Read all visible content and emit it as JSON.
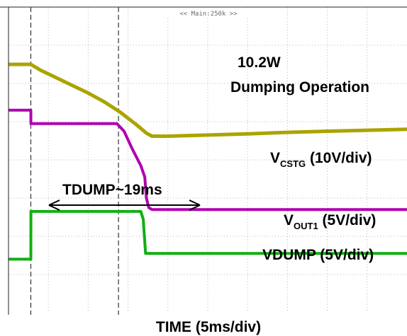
{
  "chart_data": {
    "type": "line",
    "header_text": "<< Main:250k >>",
    "annotations": {
      "power": "10.2W",
      "mode": "Dumping Operation",
      "interval": "TDUMP~19ms"
    },
    "xlabel": "TIME (5ms/div)",
    "x_divisions": 10,
    "x_per_div_ms": 5,
    "cursors_ms": [
      2.8,
      13.8
    ],
    "series": [
      {
        "name": "VCSTG (10V/div)",
        "label_main": "V",
        "label_sub": "CSTG",
        "label_tail": " (10V/div)",
        "color": "#aaa400",
        "x_ms": [
          0,
          2.8,
          4,
          6,
          8,
          10,
          12,
          14,
          16,
          17.3,
          18,
          20,
          25,
          30,
          35,
          40,
          50
        ],
        "y_div": [
          6.5,
          6.5,
          6.35,
          6.15,
          5.95,
          5.75,
          5.52,
          5.25,
          4.93,
          4.7,
          4.62,
          4.62,
          4.65,
          4.68,
          4.72,
          4.75,
          4.8
        ]
      },
      {
        "name": "VOUT1 (5V/div)",
        "label_main": "V",
        "label_sub": "OUT1",
        "label_tail": " (5V/div)",
        "color": "#b000b0",
        "x_ms": [
          0,
          2.8,
          2.81,
          13.6,
          14.5,
          15.5,
          16.6,
          17.1,
          17.3,
          17.6,
          18,
          25,
          50
        ],
        "y_div": [
          5.3,
          5.3,
          4.95,
          4.95,
          4.75,
          4.3,
          3.85,
          3.55,
          3.0,
          2.75,
          2.7,
          2.7,
          2.7
        ]
      },
      {
        "name": "VDUMP (5V/div)",
        "label_main": "VDUMP",
        "label_sub": "",
        "label_tail": " (5V/div)",
        "color": "#10b010",
        "x_ms": [
          0,
          2.8,
          2.81,
          16.6,
          16.9,
          17.2,
          50
        ],
        "y_div": [
          1.4,
          1.4,
          2.65,
          2.65,
          2.45,
          1.55,
          1.55
        ]
      }
    ]
  }
}
